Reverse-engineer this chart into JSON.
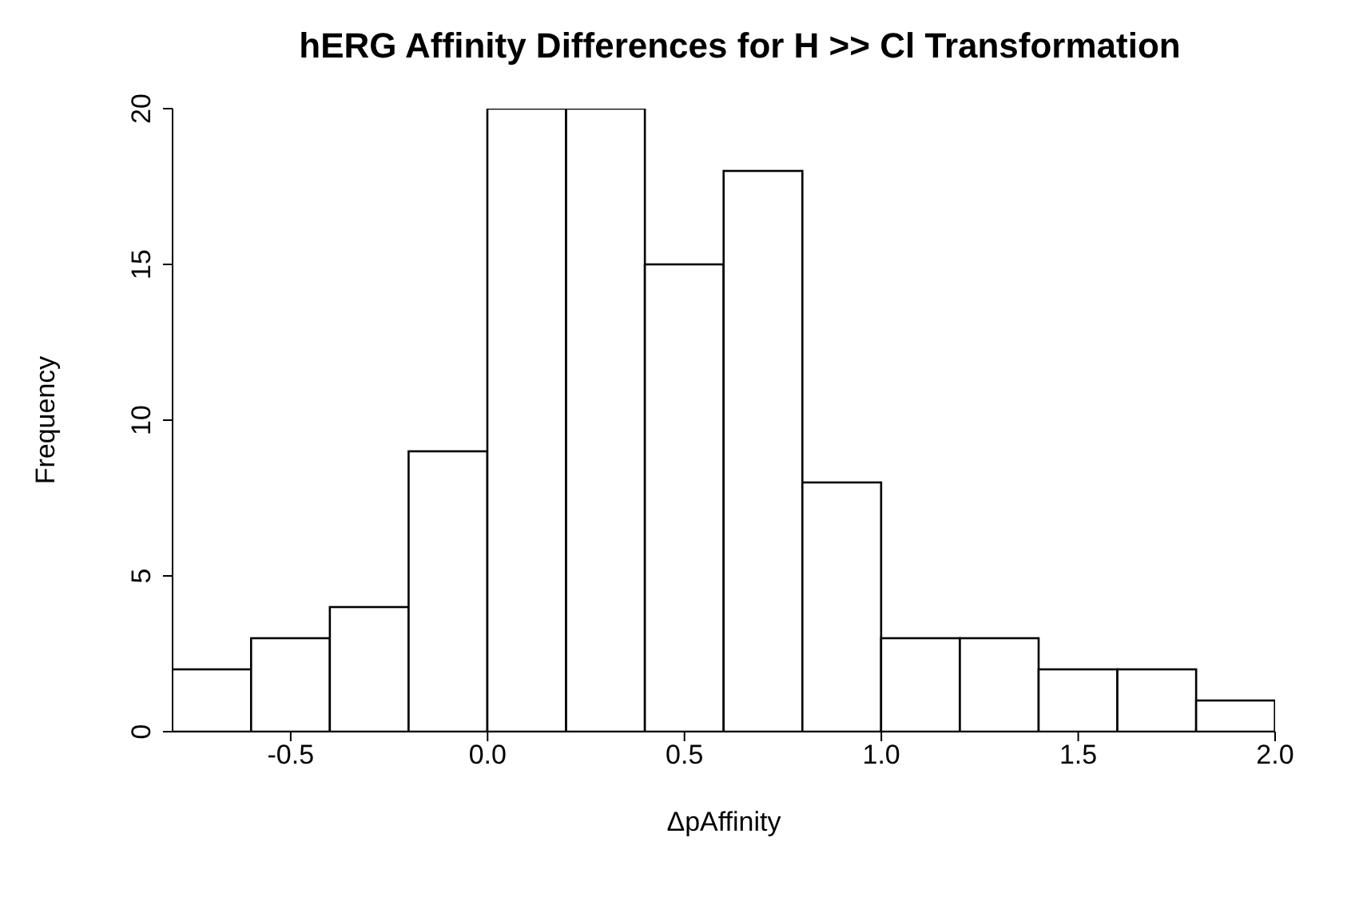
{
  "chart_data": {
    "type": "histogram",
    "title": "hERG Affinity Differences for H >> Cl Transformation",
    "xlabel": "ΔpAffinity",
    "ylabel": "Frequency",
    "bins": [
      -0.8,
      -0.6,
      -0.4,
      -0.2,
      0.0,
      0.2,
      0.4,
      0.6,
      0.8,
      1.0,
      1.2,
      1.4,
      1.6,
      1.8,
      2.0
    ],
    "values": [
      2,
      3,
      4,
      9,
      20,
      20,
      15,
      18,
      8,
      3,
      3,
      2,
      2,
      1
    ],
    "color": "#ffffff",
    "xlim": [
      -0.8,
      2.0
    ],
    "xticks": [
      -0.5,
      {
        "value": 0,
        "label": "0.0"
      },
      0.5,
      {
        "value": 1,
        "label": "1.0"
      },
      1.5,
      {
        "value": 2,
        "label": "2.0"
      }
    ],
    "ylim": [
      0,
      20
    ],
    "yticks": [
      0,
      5,
      10,
      15,
      20
    ],
    "grid": false,
    "legend": false
  }
}
